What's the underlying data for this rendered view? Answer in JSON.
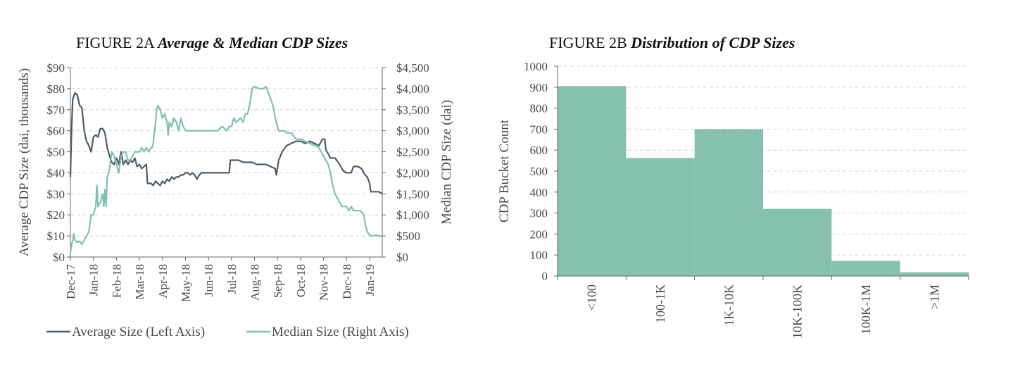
{
  "figures": {
    "a_prefix": "FIGURE 2A",
    "a_title": "Average & Median CDP Sizes",
    "b_prefix": "FIGURE 2B",
    "b_title": "Distribution of CDP Sizes"
  },
  "chart_data": [
    {
      "type": "line",
      "title": "Average & Median CDP Sizes",
      "x_ticks": [
        "Dec-17",
        "Jan-18",
        "Feb-18",
        "Mar-18",
        "Apr-18",
        "May-18",
        "Jun-18",
        "Jul-18",
        "Aug-18",
        "Sep-18",
        "Oct-18",
        "Nov-18",
        "Dec-18",
        "Jan-19"
      ],
      "ylabel_left": "Average CDP Size (dai, thousands)",
      "ylabel_right": "Median CDP Size (dai)",
      "ylim_left": [
        0,
        90
      ],
      "ylim_right": [
        0,
        4500
      ],
      "yticks_left": [
        "$0",
        "$10",
        "$20",
        "$30",
        "$40",
        "$50",
        "$60",
        "$70",
        "$80",
        "$90"
      ],
      "yticks_right": [
        "$0",
        "$500",
        "$1,000",
        "$1,500",
        "$2,000",
        "$2,500",
        "$3,000",
        "$3,500",
        "$4,000",
        "$4,500"
      ],
      "legend_position": "bottom",
      "colors": {
        "average": "#4f5a6b",
        "median": "#7fc1ac"
      },
      "series": [
        {
          "name": "Average Size (Left Axis)",
          "axis": "left",
          "points": [
            [
              0,
              38
            ],
            [
              0.05,
              60
            ],
            [
              0.1,
              75
            ],
            [
              0.2,
              78
            ],
            [
              0.3,
              77
            ],
            [
              0.4,
              72
            ],
            [
              0.5,
              71
            ],
            [
              0.6,
              60
            ],
            [
              0.7,
              55
            ],
            [
              0.8,
              53
            ],
            [
              0.9,
              50
            ],
            [
              1.0,
              57
            ],
            [
              1.1,
              58
            ],
            [
              1.2,
              57
            ],
            [
              1.3,
              61
            ],
            [
              1.4,
              61
            ],
            [
              1.5,
              59
            ],
            [
              1.6,
              52
            ],
            [
              1.7,
              48
            ],
            [
              1.8,
              45
            ],
            [
              1.9,
              44
            ],
            [
              2.0,
              47
            ],
            [
              2.1,
              44
            ],
            [
              2.2,
              50
            ],
            [
              2.3,
              44
            ],
            [
              2.4,
              46
            ],
            [
              2.5,
              44
            ],
            [
              2.6,
              46
            ],
            [
              2.7,
              45
            ],
            [
              2.8,
              47
            ],
            [
              2.9,
              43
            ],
            [
              3.0,
              44
            ],
            [
              3.1,
              42
            ],
            [
              3.2,
              43
            ],
            [
              3.3,
              44
            ],
            [
              3.35,
              35
            ],
            [
              3.5,
              35
            ],
            [
              3.6,
              34
            ],
            [
              3.7,
              36
            ],
            [
              3.8,
              35
            ],
            [
              3.9,
              34
            ],
            [
              4.0,
              36
            ],
            [
              4.1,
              35
            ],
            [
              4.2,
              37
            ],
            [
              4.3,
              36
            ],
            [
              4.4,
              38
            ],
            [
              4.5,
              37
            ],
            [
              4.6,
              38
            ],
            [
              4.7,
              38
            ],
            [
              4.8,
              39
            ],
            [
              4.9,
              39
            ],
            [
              5.0,
              40
            ],
            [
              5.1,
              40
            ],
            [
              5.2,
              39
            ],
            [
              5.3,
              40
            ],
            [
              5.4,
              39
            ],
            [
              5.5,
              37
            ],
            [
              5.6,
              39
            ],
            [
              5.7,
              40
            ],
            [
              5.8,
              40
            ],
            [
              6.0,
              40
            ],
            [
              6.2,
              40
            ],
            [
              6.4,
              40
            ],
            [
              6.6,
              40
            ],
            [
              6.8,
              40
            ],
            [
              6.9,
              40
            ],
            [
              6.95,
              46
            ],
            [
              7.1,
              46
            ],
            [
              7.3,
              46
            ],
            [
              7.5,
              45
            ],
            [
              7.7,
              45
            ],
            [
              7.9,
              45
            ],
            [
              8.1,
              44
            ],
            [
              8.3,
              44
            ],
            [
              8.5,
              44
            ],
            [
              8.7,
              43
            ],
            [
              8.9,
              42
            ],
            [
              8.95,
              39
            ],
            [
              9.05,
              46
            ],
            [
              9.2,
              50
            ],
            [
              9.4,
              53
            ],
            [
              9.6,
              54
            ],
            [
              9.8,
              55
            ],
            [
              10.0,
              55
            ],
            [
              10.2,
              54
            ],
            [
              10.4,
              55
            ],
            [
              10.6,
              54
            ],
            [
              10.8,
              53
            ],
            [
              10.95,
              56
            ],
            [
              11.05,
              56
            ],
            [
              11.1,
              51
            ],
            [
              11.2,
              49
            ],
            [
              11.3,
              47
            ],
            [
              11.5,
              47
            ],
            [
              11.7,
              44
            ],
            [
              11.85,
              41
            ],
            [
              12.0,
              40
            ],
            [
              12.2,
              40
            ],
            [
              12.3,
              43
            ],
            [
              12.5,
              43
            ],
            [
              12.65,
              42
            ],
            [
              12.8,
              39
            ],
            [
              12.9,
              38
            ],
            [
              13.0,
              35
            ],
            [
              13.05,
              31
            ],
            [
              13.2,
              31
            ],
            [
              13.4,
              31
            ],
            [
              13.55,
              30
            ]
          ]
        },
        {
          "name": "Median Size (Right Axis)",
          "axis": "right",
          "points": [
            [
              0,
              100
            ],
            [
              0.05,
              300
            ],
            [
              0.1,
              400
            ],
            [
              0.15,
              550
            ],
            [
              0.2,
              400
            ],
            [
              0.3,
              350
            ],
            [
              0.4,
              380
            ],
            [
              0.5,
              300
            ],
            [
              0.6,
              400
            ],
            [
              0.7,
              500
            ],
            [
              0.8,
              600
            ],
            [
              0.9,
              1000
            ],
            [
              1.0,
              1000
            ],
            [
              1.1,
              1200
            ],
            [
              1.15,
              1700
            ],
            [
              1.2,
              1200
            ],
            [
              1.3,
              1300
            ],
            [
              1.4,
              1500
            ],
            [
              1.45,
              1200
            ],
            [
              1.5,
              1600
            ],
            [
              1.55,
              1200
            ],
            [
              1.6,
              1900
            ],
            [
              1.7,
              2100
            ],
            [
              1.8,
              2500
            ],
            [
              1.9,
              2400
            ],
            [
              2.0,
              2200
            ],
            [
              2.1,
              2000
            ],
            [
              2.2,
              2400
            ],
            [
              2.3,
              2500
            ],
            [
              2.4,
              2500
            ],
            [
              2.5,
              2300
            ],
            [
              2.6,
              2300
            ],
            [
              2.7,
              2400
            ],
            [
              2.8,
              2500
            ],
            [
              2.9,
              2500
            ],
            [
              3.0,
              2500
            ],
            [
              3.1,
              2600
            ],
            [
              3.2,
              2500
            ],
            [
              3.3,
              2600
            ],
            [
              3.4,
              2500
            ],
            [
              3.5,
              2600
            ],
            [
              3.55,
              2600
            ],
            [
              3.6,
              2700
            ],
            [
              3.7,
              3200
            ],
            [
              3.75,
              3500
            ],
            [
              3.8,
              3600
            ],
            [
              3.9,
              3500
            ],
            [
              4.0,
              3300
            ],
            [
              4.1,
              3400
            ],
            [
              4.2,
              3200
            ],
            [
              4.25,
              2900
            ],
            [
              4.3,
              3200
            ],
            [
              4.4,
              3100
            ],
            [
              4.5,
              3300
            ],
            [
              4.6,
              3200
            ],
            [
              4.7,
              3000
            ],
            [
              4.8,
              3300
            ],
            [
              4.9,
              3100
            ],
            [
              5.0,
              3000
            ],
            [
              5.2,
              3000
            ],
            [
              5.4,
              3000
            ],
            [
              5.6,
              3000
            ],
            [
              5.8,
              3000
            ],
            [
              6.0,
              3000
            ],
            [
              6.2,
              3000
            ],
            [
              6.4,
              3000
            ],
            [
              6.6,
              3100
            ],
            [
              6.8,
              3000
            ],
            [
              6.9,
              3100
            ],
            [
              7.0,
              3100
            ],
            [
              7.1,
              3300
            ],
            [
              7.2,
              3200
            ],
            [
              7.4,
              3300
            ],
            [
              7.5,
              3200
            ],
            [
              7.6,
              3400
            ],
            [
              7.7,
              3400
            ],
            [
              7.8,
              3650
            ],
            [
              7.9,
              4000
            ],
            [
              8.0,
              4050
            ],
            [
              8.2,
              4000
            ],
            [
              8.4,
              4000
            ],
            [
              8.5,
              4050
            ],
            [
              8.6,
              3900
            ],
            [
              8.7,
              3750
            ],
            [
              8.8,
              3600
            ],
            [
              8.9,
              3300
            ],
            [
              9.0,
              3100
            ],
            [
              9.05,
              3000
            ],
            [
              9.3,
              3000
            ],
            [
              9.4,
              2950
            ],
            [
              9.6,
              2950
            ],
            [
              9.8,
              2800
            ],
            [
              10.0,
              2800
            ],
            [
              10.2,
              2750
            ],
            [
              10.4,
              2700
            ],
            [
              10.6,
              2650
            ],
            [
              10.8,
              2600
            ],
            [
              11.0,
              2400
            ],
            [
              11.1,
              2300
            ],
            [
              11.2,
              2200
            ],
            [
              11.3,
              2000
            ],
            [
              11.4,
              1700
            ],
            [
              11.5,
              1500
            ],
            [
              11.6,
              1400
            ],
            [
              11.7,
              1300
            ],
            [
              11.8,
              1200
            ],
            [
              12.0,
              1200
            ],
            [
              12.1,
              1100
            ],
            [
              12.2,
              1200
            ],
            [
              12.3,
              1100
            ],
            [
              12.4,
              1100
            ],
            [
              12.5,
              1100
            ],
            [
              12.6,
              1100
            ],
            [
              12.75,
              1000
            ],
            [
              12.8,
              800
            ],
            [
              12.9,
              600
            ],
            [
              13.0,
              520
            ],
            [
              13.1,
              500
            ],
            [
              13.3,
              520
            ],
            [
              13.4,
              500
            ],
            [
              13.55,
              500
            ]
          ]
        }
      ]
    },
    {
      "type": "bar",
      "title": "Distribution of CDP Sizes",
      "categories": [
        "<100",
        "100-1K",
        "1K-10K",
        "10K-100K",
        "100K-1M",
        ">1M"
      ],
      "values": [
        905,
        562,
        700,
        320,
        72,
        18
      ],
      "ylabel": "CDP Bucket Count",
      "ylim": [
        0,
        1000
      ],
      "yticks": [
        "0",
        "100",
        "200",
        "300",
        "400",
        "500",
        "600",
        "700",
        "800",
        "900",
        "1000"
      ],
      "bar_color": "#86c1ad"
    }
  ]
}
